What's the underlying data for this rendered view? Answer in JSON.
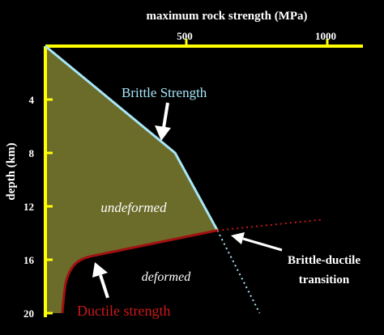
{
  "chart_data": {
    "type": "area",
    "title": "maximum rock strength (MPa)",
    "xlabel": "maximum rock strength (MPa)",
    "ylabel": "depth (km)",
    "x_axis_position": "top",
    "y_axis_inverted": true,
    "xlim": [
      0,
      1100
    ],
    "ylim": [
      0,
      20
    ],
    "x_ticks": [
      500,
      1000
    ],
    "y_ticks": [
      4,
      8,
      12,
      16,
      20
    ],
    "grid": false,
    "colors": {
      "background": "#000000",
      "axis": "#ffff00",
      "fill": "#6b6b2a",
      "brittle": "#a8e6f8",
      "ductile": "#a01010",
      "text": "#ffffff"
    },
    "series": [
      {
        "name": "Brittle Strength",
        "points": [
          [
            0,
            0
          ],
          [
            460,
            8
          ],
          [
            610,
            13.8
          ]
        ],
        "extension": [
          [
            610,
            13.8
          ],
          [
            760,
            20
          ]
        ]
      },
      {
        "name": "Ductile strength",
        "points": [
          [
            60,
            20
          ],
          [
            75,
            17.5
          ],
          [
            170,
            15.7
          ],
          [
            610,
            13.8
          ]
        ],
        "extension": [
          [
            610,
            13.8
          ],
          [
            980,
            13
          ]
        ]
      }
    ],
    "annotations": [
      {
        "id": "undeformed",
        "text": "undeformed",
        "x": 320,
        "y": 12
      },
      {
        "id": "deformed",
        "text": "deformed",
        "x": 420,
        "y": 16.8
      },
      {
        "id": "transition",
        "text_lines": [
          "Brittle-ductile",
          "transition"
        ],
        "x": 870,
        "y": 16.5
      }
    ]
  }
}
